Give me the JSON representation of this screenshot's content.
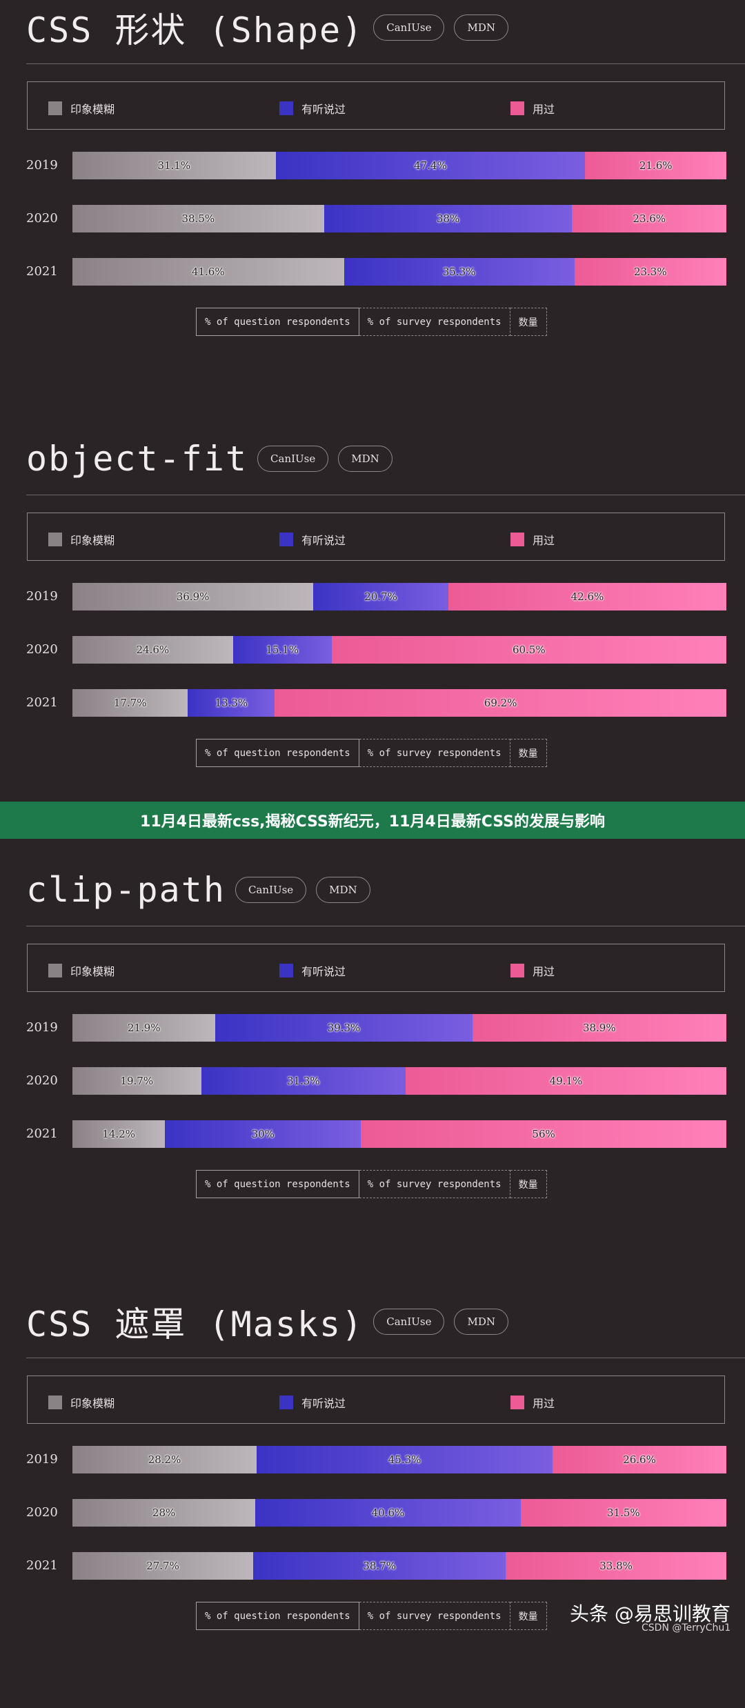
{
  "legend_labels": [
    "印象模糊",
    "有听说过",
    "用过"
  ],
  "legend_colors": [
    "#8a8286",
    "#3b33c4",
    "#ec5b95"
  ],
  "toggle_labels": [
    "% of question respondents",
    "% of survey respondents",
    "数量"
  ],
  "pill_labels": [
    "CanIUse",
    "MDN"
  ],
  "banner": "11月4日最新css,揭秘CSS新纪元，11月4日最新CSS的发展与影响",
  "watermark": {
    "brand": "头条 @易思训教育",
    "credit": "CSDN @TerryChu1"
  },
  "chart_data": [
    {
      "type": "bar",
      "title": "CSS 形状 (Shape)",
      "categories": [
        "2019",
        "2020",
        "2021"
      ],
      "series": [
        {
          "name": "印象模糊",
          "values": [
            31.1,
            38.5,
            41.6
          ]
        },
        {
          "name": "有听说过",
          "values": [
            47.4,
            38,
            35.3
          ]
        },
        {
          "name": "用过",
          "values": [
            21.6,
            23.6,
            23.3
          ]
        }
      ],
      "value_labels": [
        [
          "31.1%",
          "47.4%",
          "21.6%"
        ],
        [
          "38.5%",
          "38%",
          "23.6%"
        ],
        [
          "41.6%",
          "35.3%",
          "23.3%"
        ]
      ]
    },
    {
      "type": "bar",
      "title": "object-fit",
      "categories": [
        "2019",
        "2020",
        "2021"
      ],
      "series": [
        {
          "name": "印象模糊",
          "values": [
            36.9,
            24.6,
            17.7
          ]
        },
        {
          "name": "有听说过",
          "values": [
            20.7,
            15.1,
            13.3
          ]
        },
        {
          "name": "用过",
          "values": [
            42.6,
            60.5,
            69.2
          ]
        }
      ],
      "value_labels": [
        [
          "36.9%",
          "20.7%",
          "42.6%"
        ],
        [
          "24.6%",
          "15.1%",
          "60.5%"
        ],
        [
          "17.7%",
          "13.3%",
          "69.2%"
        ]
      ]
    },
    {
      "type": "bar",
      "title": "clip-path",
      "categories": [
        "2019",
        "2020",
        "2021"
      ],
      "series": [
        {
          "name": "印象模糊",
          "values": [
            21.9,
            19.7,
            14.2
          ]
        },
        {
          "name": "有听说过",
          "values": [
            39.3,
            31.3,
            30
          ]
        },
        {
          "name": "用过",
          "values": [
            38.9,
            49.1,
            56
          ]
        }
      ],
      "value_labels": [
        [
          "21.9%",
          "39.3%",
          "38.9%"
        ],
        [
          "19.7%",
          "31.3%",
          "49.1%"
        ],
        [
          "14.2%",
          "30%",
          "56%"
        ]
      ]
    },
    {
      "type": "bar",
      "title": "CSS 遮罩 (Masks)",
      "categories": [
        "2019",
        "2020",
        "2021"
      ],
      "series": [
        {
          "name": "印象模糊",
          "values": [
            28.2,
            28,
            27.7
          ]
        },
        {
          "name": "有听说过",
          "values": [
            45.3,
            40.6,
            38.7
          ]
        },
        {
          "name": "用过",
          "values": [
            26.6,
            31.5,
            33.8
          ]
        }
      ],
      "value_labels": [
        [
          "28.2%",
          "45.3%",
          "26.6%"
        ],
        [
          "28%",
          "40.6%",
          "31.5%"
        ],
        [
          "27.7%",
          "38.7%",
          "33.8%"
        ]
      ]
    }
  ]
}
